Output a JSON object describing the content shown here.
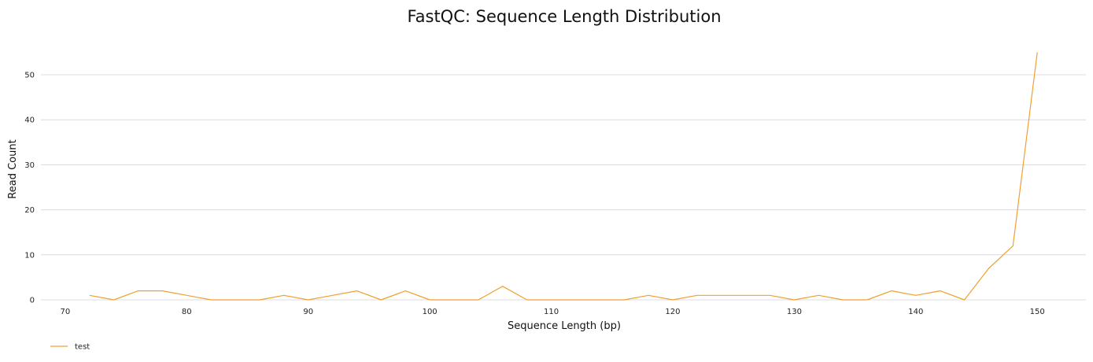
{
  "chart_data": {
    "type": "line",
    "title": "FastQC: Sequence Length Distribution",
    "xlabel": "Sequence Length (bp)",
    "ylabel": "Read Count",
    "xlim": [
      68,
      154
    ],
    "ylim": [
      0,
      57
    ],
    "xticks": [
      70,
      80,
      90,
      100,
      110,
      120,
      130,
      140,
      150
    ],
    "yticks": [
      0,
      10,
      20,
      30,
      40,
      50
    ],
    "grid": "horizontal",
    "legend_position": "bottom-left",
    "series": [
      {
        "name": "test",
        "color": "#f0a030",
        "x": [
          72,
          74,
          76,
          78,
          80,
          82,
          84,
          86,
          88,
          90,
          92,
          94,
          96,
          98,
          100,
          102,
          104,
          106,
          108,
          110,
          112,
          114,
          116,
          118,
          120,
          122,
          124,
          126,
          128,
          130,
          132,
          134,
          136,
          138,
          140,
          142,
          144,
          146,
          148,
          150
        ],
        "y": [
          1,
          0,
          2,
          2,
          1,
          0,
          0,
          0,
          1,
          0,
          1,
          2,
          0,
          2,
          0,
          0,
          0,
          3,
          0,
          0,
          0,
          0,
          0,
          1,
          0,
          1,
          1,
          1,
          1,
          0,
          1,
          0,
          0,
          2,
          1,
          2,
          0,
          7,
          12,
          55
        ]
      }
    ]
  }
}
